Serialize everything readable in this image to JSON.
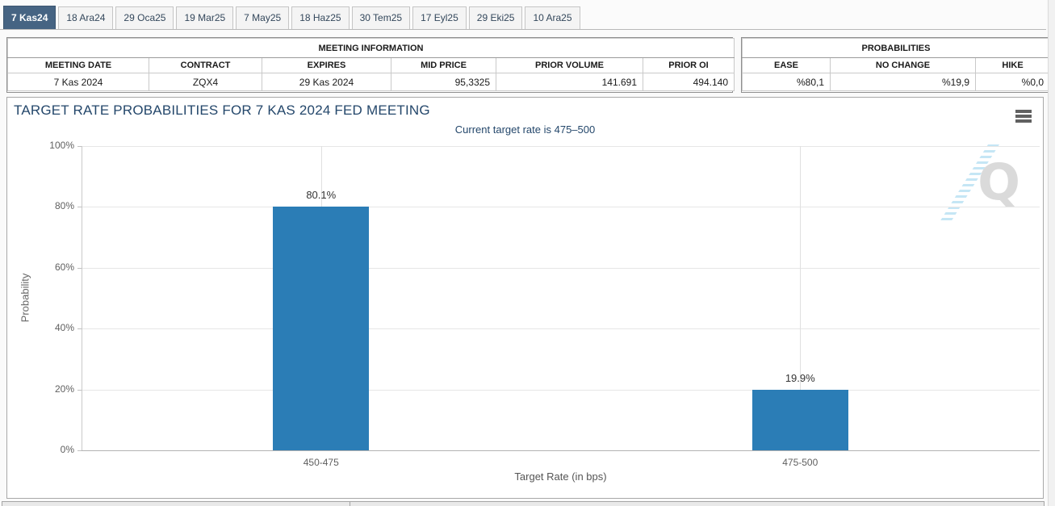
{
  "tabs": [
    {
      "label": "7 Kas24",
      "active": true
    },
    {
      "label": "18 Ara24",
      "active": false
    },
    {
      "label": "29 Oca25",
      "active": false
    },
    {
      "label": "19 Mar25",
      "active": false
    },
    {
      "label": "7 May25",
      "active": false
    },
    {
      "label": "18 Haz25",
      "active": false
    },
    {
      "label": "30 Tem25",
      "active": false
    },
    {
      "label": "17 Eyl25",
      "active": false
    },
    {
      "label": "29 Eki25",
      "active": false
    },
    {
      "label": "10 Ara25",
      "active": false
    }
  ],
  "meeting_info": {
    "title": "MEETING INFORMATION",
    "columns": [
      "MEETING DATE",
      "CONTRACT",
      "EXPIRES",
      "MID PRICE",
      "PRIOR VOLUME",
      "PRIOR OI"
    ],
    "values": [
      "7 Kas 2024",
      "ZQX4",
      "29 Kas 2024",
      "95,3325",
      "141.691",
      "494.140"
    ],
    "align": [
      "c",
      "c",
      "c",
      "r",
      "r",
      "r"
    ]
  },
  "probabilities": {
    "title": "PROBABILITIES",
    "columns": [
      "EASE",
      "NO CHANGE",
      "HIKE"
    ],
    "values": [
      "%80,1",
      "%19,9",
      "%0,0"
    ],
    "align": [
      "r",
      "r",
      "r"
    ]
  },
  "chart": {
    "title": "TARGET RATE PROBABILITIES FOR 7 KAS 2024 FED MEETING",
    "subtitle": "Current target rate is 475–500",
    "watermark_letter": "Q"
  },
  "chart_data": {
    "type": "bar",
    "categories": [
      "450-475",
      "475-500"
    ],
    "values": [
      80.1,
      19.9
    ],
    "value_labels": [
      "80.1%",
      "19.9%"
    ],
    "title": "TARGET RATE PROBABILITIES FOR 7 KAS 2024 FED MEETING",
    "subtitle": "Current target rate is 475–500",
    "xlabel": "Target Rate (in bps)",
    "ylabel": "Probability",
    "ylim": [
      0,
      100
    ],
    "ytick_labels": [
      "0%",
      "20%",
      "40%",
      "60%",
      "80%",
      "100%"
    ],
    "grid": true,
    "legend": "none"
  },
  "colors": {
    "bar": "#2b7db6",
    "active_tab": "#466483",
    "chart_title": "#24476b"
  }
}
